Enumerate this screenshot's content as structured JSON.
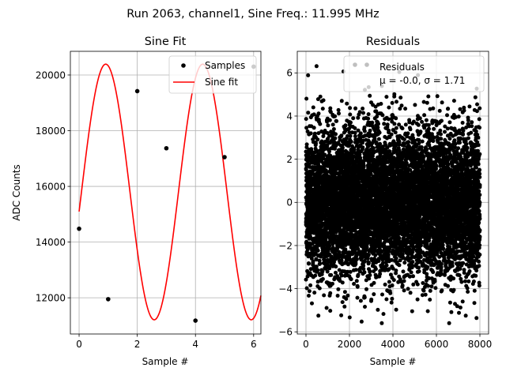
{
  "figure": {
    "suptitle": "Run 2063, channel1, Sine Freq.: 11.995 MHz"
  },
  "chart_data": [
    {
      "type": "scatter",
      "title": "Sine Fit",
      "xlabel": "Sample #",
      "ylabel": "ADC Counts",
      "xlim": [
        -0.3,
        6.25
      ],
      "ylim": [
        10700,
        20850
      ],
      "xticks": [
        0,
        2,
        4,
        6
      ],
      "yticks": [
        12000,
        14000,
        16000,
        18000,
        20000
      ],
      "grid": true,
      "legend": {
        "location": "top-right",
        "entries": [
          "Samples",
          "Sine fit"
        ]
      },
      "samples": {
        "name": "Samples",
        "x": [
          0,
          1,
          2,
          3,
          4,
          5,
          6
        ],
        "y": [
          14480,
          11950,
          19420,
          17370,
          11180,
          17050,
          20300
        ]
      },
      "fit": {
        "name": "Sine fit",
        "color": "#ff0000",
        "model": "offset + amplitude*sin(omega*x + phase)",
        "offset": 15800,
        "amplitude": 4590,
        "omega": 1.8841,
        "phase": -0.154,
        "x_range": [
          0,
          6.25
        ]
      }
    },
    {
      "type": "scatter",
      "title": "Residuals",
      "xlabel": "Sample #",
      "ylabel": "",
      "xlim": [
        -400,
        8400
      ],
      "ylim": [
        -6.1,
        7.0
      ],
      "xticks": [
        0,
        2000,
        4000,
        6000,
        8000
      ],
      "yticks": [
        -6,
        -4,
        -2,
        0,
        2,
        4,
        6
      ],
      "grid": true,
      "legend": {
        "location": "top-right",
        "entries": [
          "Residuals"
        ],
        "stats_text": "μ = -0.0, σ = 1.71"
      },
      "series": {
        "name": "Residuals",
        "n_points": 8000,
        "x_range": [
          0,
          7999
        ],
        "mean": -0.0,
        "std": 1.71,
        "color": "#000000"
      }
    }
  ]
}
